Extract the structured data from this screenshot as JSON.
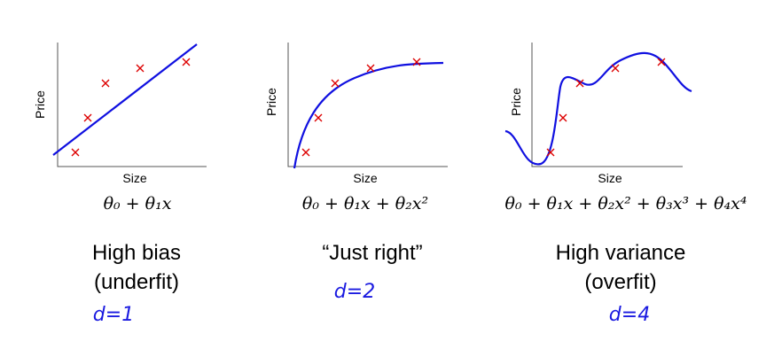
{
  "panels": [
    {
      "y_label": "Price",
      "x_label": "Size",
      "formula": "θ₀ + θ₁x",
      "title": [
        "High bias",
        "(underfit)"
      ],
      "note": "d=1"
    },
    {
      "y_label": "Price",
      "x_label": "Size",
      "formula": "θ₀ + θ₁x + θ₂x²",
      "title": [
        "“Just right”"
      ],
      "note": "d=2"
    },
    {
      "y_label": "Price",
      "x_label": "Size",
      "formula": "θ₀ + θ₁x + θ₂x² + θ₃x³ + θ₄x⁴",
      "title": [
        "High variance",
        "(overfit)"
      ],
      "note": "d=4"
    }
  ]
}
